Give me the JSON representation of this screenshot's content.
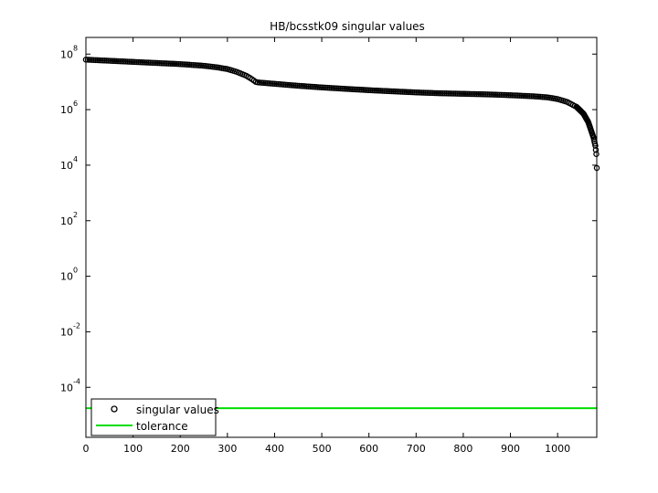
{
  "chart_data": {
    "type": "scatter",
    "title": "HB/bcsstk09 singular values",
    "xlabel": "",
    "ylabel": "",
    "xlim": [
      0,
      1083
    ],
    "ylim_log10": [
      -5.8,
      8.6
    ],
    "yscale": "log",
    "xticks": [
      0,
      100,
      200,
      300,
      400,
      500,
      600,
      700,
      800,
      900,
      1000
    ],
    "yticks": [
      {
        "base": "10",
        "exp": "8",
        "log10": 8
      },
      {
        "base": "10",
        "exp": "6",
        "log10": 6
      },
      {
        "base": "10",
        "exp": "4",
        "log10": 4
      },
      {
        "base": "10",
        "exp": "2",
        "log10": 2
      },
      {
        "base": "10",
        "exp": "0",
        "log10": 0
      },
      {
        "base": "10",
        "exp": "-2",
        "log10": -2
      },
      {
        "base": "10",
        "exp": "-4",
        "log10": -4
      }
    ],
    "grid": false,
    "legend_position": "bottom-left",
    "series": [
      {
        "name": "singular values",
        "marker": "circle",
        "color": "#000000",
        "n": 1083,
        "profile_x": [
          0,
          50,
          100,
          150,
          200,
          250,
          280,
          300,
          320,
          340,
          350,
          360,
          365,
          400,
          450,
          500,
          550,
          600,
          650,
          700,
          750,
          800,
          850,
          900,
          950,
          980,
          1000,
          1020,
          1040,
          1055,
          1065,
          1070,
          1073,
          1076,
          1078,
          1080,
          1082,
          1083
        ],
        "profile_log10": [
          7.8,
          7.76,
          7.72,
          7.68,
          7.64,
          7.58,
          7.52,
          7.46,
          7.36,
          7.22,
          7.12,
          7.0,
          6.98,
          6.93,
          6.86,
          6.8,
          6.75,
          6.7,
          6.66,
          6.62,
          6.59,
          6.57,
          6.55,
          6.52,
          6.48,
          6.44,
          6.38,
          6.28,
          6.1,
          5.85,
          5.55,
          5.3,
          5.15,
          5.0,
          4.85,
          4.7,
          4.4,
          3.9
        ]
      },
      {
        "name": "tolerance",
        "type": "line",
        "color": "#00dd00",
        "log10_value": -4.75
      }
    ]
  }
}
